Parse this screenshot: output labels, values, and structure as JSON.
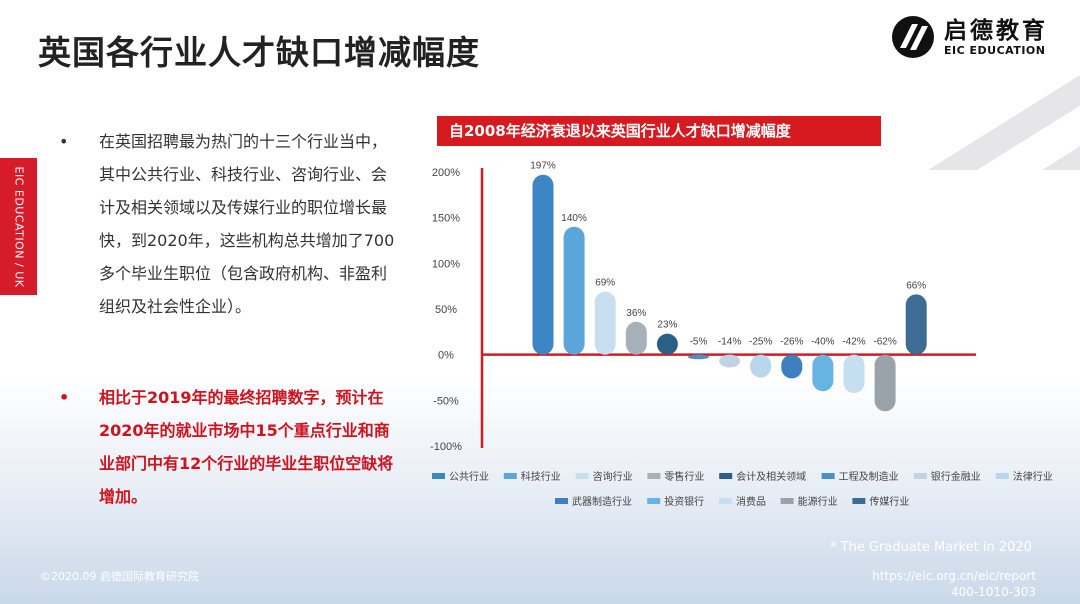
{
  "slide": {
    "title": "英国各行业人才缺口增减幅度",
    "side_tab": "EIC EDUCATION / UK",
    "logo": {
      "cn": "启德教育",
      "en": "EIC EDUCATION"
    },
    "bullets": [
      {
        "marker": "•",
        "text": "在英国招聘最为热门的十三个行业当中，其中公共行业、科技行业、咨询行业、会计及相关领域以及传媒行业的职位增长最快，到2020年，这些机构总共增加了700多个毕业生职位（包含政府机构、非盈利组织及社会性企业）。"
      },
      {
        "marker": "•",
        "text": "相比于2019年的最终招聘数字，预计在2020年的就业市场中15个重点行业和商业部门中有12个行业的毕业生职位空缺将增加。"
      }
    ],
    "footnote": "* The Graduate Market in 2020",
    "copyright": "©2020.09 启德国际教育研究院",
    "url": "https://eic.org.cn/eic/report",
    "phone": "400-1010-303",
    "colors": {
      "accent_red": "#d71920",
      "text_red": "#d0121f"
    }
  },
  "chart_data": {
    "type": "bar",
    "title": "自2008年经济衰退以来英国行业人才缺口增减幅度",
    "categories": [
      "公共行业",
      "科技行业",
      "咨询行业",
      "零售行业",
      "会计及相关领域",
      "工程及制造业",
      "银行金融业",
      "法律行业",
      "武器制造行业",
      "投资银行",
      "消费品",
      "能源行业",
      "传媒行业"
    ],
    "values": [
      197,
      140,
      69,
      36,
      23,
      -5,
      -14,
      -25,
      -26,
      -40,
      -42,
      -62,
      66
    ],
    "value_labels": [
      "197%",
      "140%",
      "69%",
      "36%",
      "23%",
      "-5%",
      "-14%",
      "-25%",
      "-26%",
      "-40%",
      "-42%",
      "-62%",
      "66%"
    ],
    "colors": [
      "#3d86c6",
      "#5aa6da",
      "#c7dff0",
      "#a7b1b9",
      "#2c5f86",
      "#4b8fc8",
      "#bfd3e2",
      "#b8d6ec",
      "#3e7fc0",
      "#67b3e2",
      "#c5dff0",
      "#9aa3aa",
      "#3f6c94"
    ],
    "ylim": [
      -100,
      200
    ],
    "yticks": [
      "200%",
      "150%",
      "100%",
      "50%",
      "0%",
      "-50%",
      "-100%"
    ],
    "legend_rows": [
      [
        "公共行业",
        "科技行业",
        "咨询行业",
        "零售行业",
        "会计及相关领域",
        "工程及制造业",
        "银行金融业",
        "法律行业"
      ],
      [
        "武器制造行业",
        "投资银行",
        "消费品",
        "能源行业",
        "传媒行业"
      ]
    ],
    "legend_placement": "bottom",
    "grid": false
  }
}
